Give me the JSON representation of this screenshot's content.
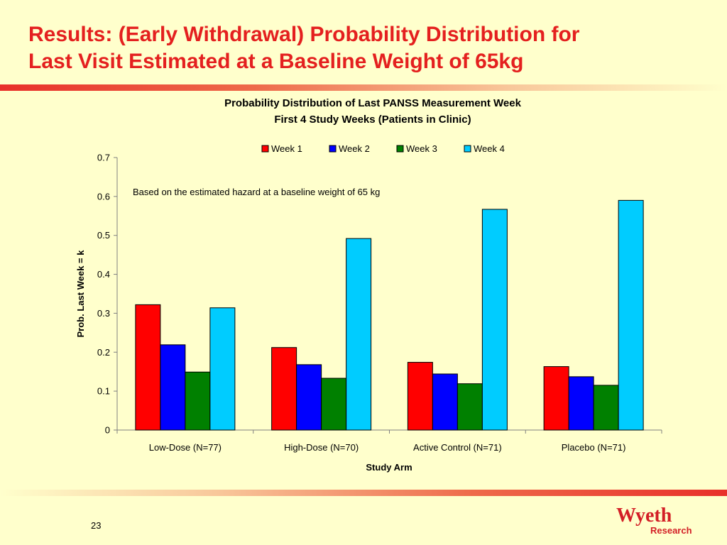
{
  "slide": {
    "title_line1": "Results: (Early Withdrawal) Probability Distribution for",
    "title_line2": "Last Visit Estimated at a Baseline Weight of 65kg",
    "page_number": "23",
    "logo_text": "Wyeth",
    "logo_subtext": "Research"
  },
  "colors": {
    "title": "#E4201F",
    "background": "#FFFFCC"
  },
  "chart_data": {
    "type": "bar",
    "title_line1": "Probability Distribution of Last PANSS Measurement Week",
    "title_line2": "First 4 Study Weeks (Patients in Clinic)",
    "annotation": "Based on the estimated hazard at a baseline weight of 65 kg",
    "xlabel": "Study Arm",
    "ylabel": "Prob. Last Week = k",
    "ylim": [
      0,
      0.7
    ],
    "yticks": [
      "0",
      "0.1",
      "0.2",
      "0.3",
      "0.4",
      "0.5",
      "0.6",
      "0.7"
    ],
    "grid": false,
    "legend_position": "top",
    "categories": [
      "Low-Dose (N=77)",
      "High-Dose (N=70)",
      "Active Control (N=71)",
      "Placebo (N=71)"
    ],
    "series": [
      {
        "name": "Week 1",
        "color": "#FF0000",
        "values": [
          0.322,
          0.212,
          0.174,
          0.163
        ]
      },
      {
        "name": "Week 2",
        "color": "#0000FF",
        "values": [
          0.219,
          0.168,
          0.144,
          0.137
        ]
      },
      {
        "name": "Week 3",
        "color": "#008000",
        "values": [
          0.149,
          0.133,
          0.119,
          0.115
        ]
      },
      {
        "name": "Week 4",
        "color": "#00CCFF",
        "values": [
          0.314,
          0.492,
          0.567,
          0.59
        ]
      }
    ]
  }
}
